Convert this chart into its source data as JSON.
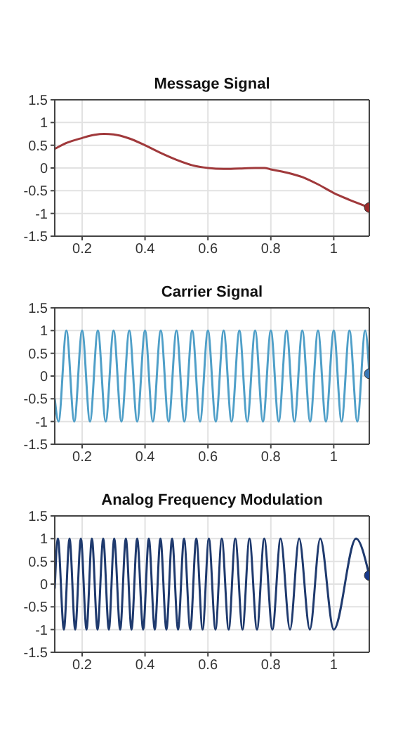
{
  "chart_data": [
    {
      "type": "line",
      "title": "Message Signal",
      "xlim": [
        0.113,
        1.113
      ],
      "xticks": [
        0.2,
        0.4,
        0.6,
        0.8,
        1
      ],
      "ylim": [
        -1.5,
        1.5
      ],
      "yticks": [
        -1.5,
        -1,
        -0.5,
        0,
        0.5,
        1,
        1.5
      ],
      "grid": true,
      "series": [
        {
          "color": "#a0393b",
          "x": [
            0.113,
            0.15,
            0.2,
            0.24,
            0.27,
            0.3,
            0.35,
            0.4,
            0.45,
            0.5,
            0.55,
            0.6,
            0.65,
            0.7,
            0.75,
            0.78,
            0.8,
            0.85,
            0.9,
            0.95,
            1.0,
            1.05,
            1.113
          ],
          "values": [
            0.42,
            0.55,
            0.66,
            0.73,
            0.75,
            0.74,
            0.65,
            0.5,
            0.33,
            0.18,
            0.06,
            0.0,
            -0.02,
            -0.01,
            0.0,
            0.0,
            -0.03,
            -0.1,
            -0.2,
            -0.36,
            -0.55,
            -0.7,
            -0.87
          ]
        },
        {
          "type": "scatter",
          "color": "#9b2c2c",
          "x": [
            1.113
          ],
          "values": [
            -0.87
          ]
        }
      ]
    },
    {
      "type": "line",
      "title": "Carrier Signal",
      "xlim": [
        0.113,
        1.113
      ],
      "xticks": [
        0.2,
        0.4,
        0.6,
        0.8,
        1
      ],
      "ylim": [
        -1.5,
        1.5
      ],
      "yticks": [
        -1.5,
        -1,
        -0.5,
        0,
        0.5,
        1,
        1.5
      ],
      "grid": true,
      "series": [
        {
          "color": "#4f9fc8",
          "x": [
            0.113,
            0.125,
            0.15,
            0.175,
            0.2,
            0.225,
            0.25,
            0.275,
            0.3,
            0.325,
            0.35,
            0.375,
            0.4,
            0.425,
            0.45,
            0.475,
            0.5,
            0.525,
            0.55,
            0.575,
            0.6,
            0.625,
            0.65,
            0.675,
            0.7,
            0.725,
            0.75,
            0.775,
            0.8,
            0.825,
            0.85,
            0.875,
            0.9,
            0.925,
            0.95,
            0.975,
            1.0,
            1.025,
            1.05,
            1.075,
            1.1,
            1.113
          ],
          "values": [
            -0.5,
            -1,
            1,
            -1,
            1,
            -1,
            1,
            -1,
            1,
            -1,
            1,
            -1,
            1,
            -1,
            1,
            -1,
            1,
            -1,
            1,
            -1,
            1,
            -1,
            1,
            -1,
            1,
            -1,
            1,
            -1,
            1,
            -1,
            1,
            -1,
            1,
            -1,
            1,
            -1,
            1,
            -1,
            1,
            -1,
            1,
            0.05
          ]
        },
        {
          "type": "scatter",
          "color": "#3a78b5",
          "x": [
            1.113
          ],
          "values": [
            0.05
          ]
        }
      ]
    },
    {
      "type": "line",
      "title": "Analog Frequency Modulation",
      "xlim": [
        0.113,
        1.113
      ],
      "xticks": [
        0.2,
        0.4,
        0.6,
        0.8,
        1
      ],
      "ylim": [
        -1.5,
        1.5
      ],
      "yticks": [
        -1.5,
        -1,
        -0.5,
        0,
        0.5,
        1,
        1.5
      ],
      "grid": true,
      "series": [
        {
          "color": "#1f3a6e",
          "x": [
            0.113,
            0.123,
            0.142,
            0.16,
            0.178,
            0.196,
            0.214,
            0.231,
            0.249,
            0.267,
            0.285,
            0.302,
            0.321,
            0.339,
            0.357,
            0.375,
            0.394,
            0.412,
            0.431,
            0.449,
            0.468,
            0.486,
            0.505,
            0.524,
            0.544,
            0.563,
            0.583,
            0.603,
            0.624,
            0.644,
            0.666,
            0.687,
            0.71,
            0.732,
            0.756,
            0.779,
            0.805,
            0.831,
            0.861,
            0.89,
            0.924,
            0.957,
            1.0,
            1.071,
            1.113
          ],
          "values": [
            -0.1,
            1,
            -1,
            1,
            -1,
            1,
            -1,
            1,
            -1,
            1,
            -1,
            1,
            -1,
            1,
            -1,
            1,
            -1,
            1,
            -1,
            1,
            -1,
            1,
            -1,
            1,
            -1,
            1,
            -1,
            1,
            -1,
            1,
            -1,
            1,
            -1,
            1,
            -1,
            1,
            -1,
            1,
            -1,
            1,
            -1,
            1,
            -1,
            1,
            0.19
          ]
        },
        {
          "type": "scatter",
          "color": "#1a3a8a",
          "x": [
            1.113
          ],
          "values": [
            0.19
          ]
        }
      ]
    }
  ]
}
